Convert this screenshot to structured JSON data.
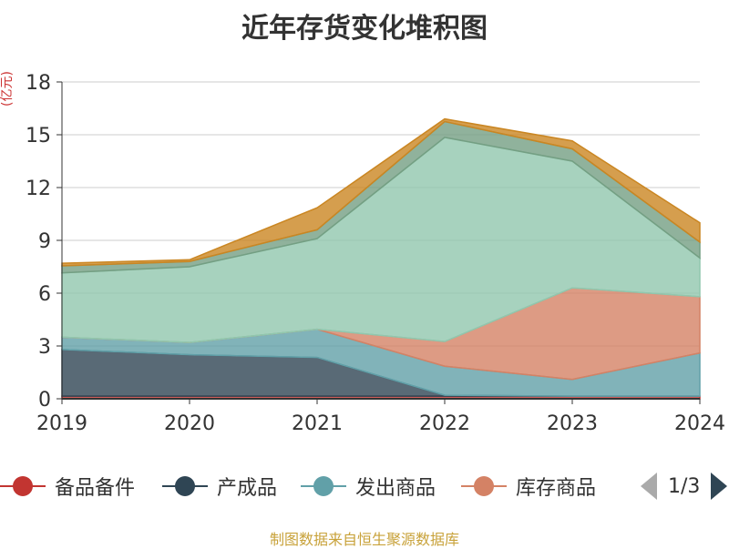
{
  "title": "近年存货变化堆积图",
  "unit": "(亿元)",
  "source": "制图数据来自恒生聚源数据库",
  "pager": {
    "text": "1/3"
  },
  "colors": {
    "spare_parts": "#c23531",
    "finished": "#2f4554",
    "shipped": "#61a0a8",
    "stock": "#d48265",
    "teal": "#91c7ae",
    "slate": "#749f83",
    "orange": "#ca8622"
  },
  "legend": [
    {
      "name": "备品备件",
      "color": "#c23531"
    },
    {
      "name": "产成品",
      "color": "#2f4554"
    },
    {
      "name": "发出商品",
      "color": "#61a0a8"
    },
    {
      "name": "库存商品",
      "color": "#d48265"
    }
  ],
  "chart_data": {
    "type": "area",
    "title": "近年存货变化堆积图",
    "ylabel": "(亿元)",
    "x": [
      "2019",
      "2020",
      "2021",
      "2022",
      "2023",
      "2024"
    ],
    "ylim": [
      0,
      18
    ],
    "yticks": [
      0,
      3,
      6,
      9,
      12,
      15,
      18
    ],
    "grid": true,
    "legend_position": "bottom",
    "stacked": true,
    "series": [
      {
        "name": "备品备件",
        "color": "#c23531",
        "values": [
          0.15,
          0.15,
          0.15,
          0.15,
          0.15,
          0.15
        ]
      },
      {
        "name": "产成品",
        "color": "#2f4554",
        "values": [
          2.65,
          2.35,
          2.2,
          0.05,
          0.0,
          0.0
        ]
      },
      {
        "name": "发出商品",
        "color": "#61a0a8",
        "values": [
          0.7,
          0.7,
          1.6,
          1.65,
          0.95,
          2.45
        ]
      },
      {
        "name": "库存商品",
        "color": "#d48265",
        "values": [
          0.0,
          0.0,
          0.0,
          1.4,
          5.2,
          3.2
        ]
      },
      {
        "color": "#91c7ae",
        "values": [
          3.65,
          4.3,
          5.15,
          11.6,
          7.2,
          2.2
        ]
      },
      {
        "color": "#749f83",
        "values": [
          0.4,
          0.3,
          0.5,
          0.9,
          0.7,
          0.9
        ]
      },
      {
        "color": "#ca8622",
        "values": [
          0.15,
          0.1,
          1.25,
          0.15,
          0.45,
          1.1
        ]
      }
    ]
  }
}
